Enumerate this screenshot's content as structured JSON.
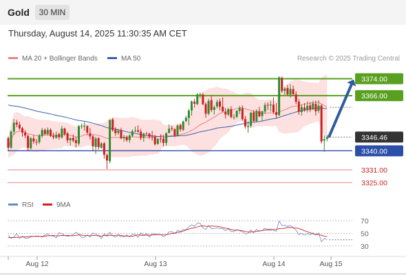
{
  "header": {
    "symbol": "Gold",
    "timeframe": "30 MIN"
  },
  "datetime": "Thursday, August 14, 2025 11:30:35 AM CET",
  "legend": {
    "ma20": "MA 20 + Bollinger Bands",
    "ma50": "MA 50",
    "credit": "Research © 2025 Trading Central"
  },
  "rsi_legend": {
    "rsi": "RSI",
    "ma": "9MA"
  },
  "colors": {
    "up": "#2e8b2e",
    "down": "#cc1f1f",
    "ma20": "#f08080",
    "ma50": "#3a5fa8",
    "band": "#fde0e0",
    "resistance": "#5aa020",
    "support": "#2b4fa8",
    "target_support": "#f0a0a0",
    "arrow": "#2e5c9e",
    "current": "#333333",
    "rsi": "#6688cc",
    "rsi_ma": "#cc1f1f"
  },
  "chart_data": [
    {
      "type": "candlestick",
      "title": "Gold",
      "timeframe": "30 MIN",
      "x_ticks": [
        "Aug 12",
        "Aug 13",
        "Aug 14",
        "Aug 15"
      ],
      "ylim": [
        3320,
        3380
      ],
      "levels": [
        {
          "label": "3374.00",
          "value": 3374,
          "kind": "resistance"
        },
        {
          "label": "3366.00",
          "value": 3366,
          "kind": "resistance"
        },
        {
          "label": "3346.46",
          "value": 3346.46,
          "kind": "current"
        },
        {
          "label": "3340.00",
          "value": 3340,
          "kind": "support"
        },
        {
          "label": "3331.00",
          "value": 3331,
          "kind": "target_support"
        },
        {
          "label": "3325.00",
          "value": 3325,
          "kind": "target_support"
        }
      ],
      "series": [
        {
          "name": "MA 20 + Bollinger Bands"
        },
        {
          "name": "MA 50"
        }
      ],
      "candles": [
        [
          3346.0,
          3346.7,
          3340.1,
          3341.4
        ],
        [
          3341.5,
          3349.6,
          3340.9,
          3349.0
        ],
        [
          3349.0,
          3355.0,
          3347.6,
          3353.2
        ],
        [
          3353.3,
          3354.6,
          3351.1,
          3352.4
        ],
        [
          3352.3,
          3353.6,
          3349.8,
          3350.6
        ],
        [
          3350.7,
          3351.3,
          3346.7,
          3348.6
        ],
        [
          3348.6,
          3349.7,
          3346.0,
          3347.2
        ],
        [
          3347.0,
          3347.8,
          3340.0,
          3341.4
        ],
        [
          3341.2,
          3346.6,
          3340.6,
          3345.9
        ],
        [
          3345.8,
          3347.3,
          3343.3,
          3344.4
        ],
        [
          3344.2,
          3345.6,
          3342.6,
          3343.9
        ],
        [
          3344.1,
          3347.9,
          3343.2,
          3347.3
        ],
        [
          3347.0,
          3350.8,
          3346.1,
          3349.8
        ],
        [
          3349.8,
          3350.6,
          3347.3,
          3347.9
        ],
        [
          3347.9,
          3351.0,
          3347.2,
          3349.9
        ],
        [
          3349.9,
          3350.6,
          3346.5,
          3347.0
        ],
        [
          3347.1,
          3348.6,
          3345.4,
          3346.4
        ],
        [
          3346.2,
          3349.1,
          3345.6,
          3347.5
        ],
        [
          3347.8,
          3348.6,
          3345.3,
          3346.4
        ],
        [
          3346.3,
          3351.8,
          3345.7,
          3350.5
        ],
        [
          3350.5,
          3350.9,
          3347.0,
          3347.9
        ],
        [
          3348.2,
          3348.9,
          3343.6,
          3344.9
        ],
        [
          3345.0,
          3346.5,
          3342.5,
          3345.9
        ],
        [
          3346.1,
          3347.7,
          3344.0,
          3344.8
        ],
        [
          3345.0,
          3346.6,
          3341.6,
          3343.6
        ],
        [
          3343.4,
          3352.2,
          3342.4,
          3351.6
        ],
        [
          3351.6,
          3352.9,
          3350.4,
          3351.7
        ],
        [
          3351.6,
          3353.6,
          3349.5,
          3351.8
        ],
        [
          3351.6,
          3352.1,
          3347.6,
          3348.6
        ],
        [
          3348.3,
          3350.7,
          3345.3,
          3346.8
        ],
        [
          3346.8,
          3347.7,
          3339.7,
          3342.1
        ],
        [
          3341.8,
          3346.6,
          3338.4,
          3345.8
        ],
        [
          3346.0,
          3346.4,
          3340.6,
          3341.8
        ],
        [
          3341.5,
          3344.1,
          3341.1,
          3343.5
        ],
        [
          3343.5,
          3344.2,
          3336.3,
          3338.1
        ],
        [
          3338.0,
          3338.6,
          3331.4,
          3335.4
        ],
        [
          3335.1,
          3354.8,
          3334.1,
          3354.5
        ],
        [
          3354.8,
          3355.6,
          3349.0,
          3349.7
        ],
        [
          3350.0,
          3351.1,
          3347.1,
          3348.3
        ],
        [
          3348.4,
          3350.4,
          3347.5,
          3349.5
        ],
        [
          3349.8,
          3350.9,
          3345.4,
          3345.9
        ],
        [
          3345.9,
          3347.6,
          3344.3,
          3346.6
        ],
        [
          3346.5,
          3347.2,
          3344.2,
          3345.0
        ],
        [
          3345.1,
          3347.9,
          3343.8,
          3347.2
        ],
        [
          3347.1,
          3350.1,
          3346.4,
          3349.3
        ],
        [
          3349.5,
          3351.4,
          3348.7,
          3349.5
        ],
        [
          3349.7,
          3352.0,
          3348.5,
          3349.0
        ],
        [
          3349.0,
          3350.3,
          3345.0,
          3346.2
        ],
        [
          3346.3,
          3348.5,
          3344.3,
          3348.1
        ],
        [
          3348.1,
          3348.9,
          3347.5,
          3347.9
        ],
        [
          3348.1,
          3348.4,
          3345.6,
          3346.7
        ],
        [
          3346.7,
          3349.4,
          3344.7,
          3346.5
        ],
        [
          3346.6,
          3347.5,
          3342.5,
          3343.1
        ],
        [
          3343.2,
          3345.8,
          3342.9,
          3345.7
        ],
        [
          3345.8,
          3347.8,
          3343.8,
          3345.6
        ],
        [
          3345.7,
          3347.1,
          3342.0,
          3343.7
        ],
        [
          3343.7,
          3348.8,
          3342.4,
          3348.3
        ],
        [
          3348.4,
          3352.5,
          3348.2,
          3350.4
        ],
        [
          3350.7,
          3351.8,
          3349.3,
          3350.3
        ],
        [
          3350.2,
          3350.7,
          3346.5,
          3347.2
        ],
        [
          3347.3,
          3352.6,
          3346.7,
          3351.9
        ],
        [
          3352.1,
          3352.9,
          3349.0,
          3350.1
        ],
        [
          3349.9,
          3354.3,
          3349.3,
          3353.8
        ],
        [
          3354.0,
          3356.5,
          3353.6,
          3355.6
        ],
        [
          3355.5,
          3359.8,
          3352.0,
          3359.0
        ],
        [
          3359.0,
          3363.7,
          3356.6,
          3363.3
        ],
        [
          3363.2,
          3364.5,
          3360.4,
          3362.2
        ],
        [
          3362.0,
          3367.2,
          3361.6,
          3366.6
        ],
        [
          3366.6,
          3367.5,
          3364.9,
          3366.6
        ],
        [
          3366.5,
          3367.2,
          3361.5,
          3362.0
        ],
        [
          3362.0,
          3362.8,
          3355.6,
          3357.5
        ],
        [
          3357.5,
          3364.5,
          3356.7,
          3363.5
        ],
        [
          3363.9,
          3366.1,
          3358.3,
          3359.2
        ],
        [
          3359.3,
          3361.4,
          3357.1,
          3360.6
        ],
        [
          3360.9,
          3364.1,
          3360.0,
          3363.0
        ],
        [
          3363.3,
          3364.6,
          3359.1,
          3360.8
        ],
        [
          3360.8,
          3365.2,
          3358.2,
          3358.6
        ],
        [
          3358.3,
          3360.2,
          3355.2,
          3357.1
        ],
        [
          3357.1,
          3360.3,
          3356.4,
          3359.6
        ],
        [
          3359.6,
          3361.0,
          3355.3,
          3355.9
        ],
        [
          3355.8,
          3357.3,
          3354.7,
          3355.9
        ],
        [
          3356.0,
          3359.2,
          3355.3,
          3358.9
        ],
        [
          3358.8,
          3361.2,
          3357.4,
          3360.2
        ],
        [
          3360.0,
          3361.4,
          3354.2,
          3354.9
        ],
        [
          3355.0,
          3356.4,
          3350.4,
          3351.5
        ],
        [
          3351.2,
          3353.9,
          3348.5,
          3351.6
        ],
        [
          3351.8,
          3358.4,
          3350.8,
          3358.0
        ],
        [
          3358.1,
          3359.2,
          3353.7,
          3354.0
        ],
        [
          3354.0,
          3359.6,
          3353.7,
          3358.9
        ],
        [
          3358.7,
          3360.8,
          3355.8,
          3356.3
        ],
        [
          3356.4,
          3359.0,
          3354.0,
          3358.6
        ],
        [
          3358.5,
          3362.7,
          3357.4,
          3361.6
        ],
        [
          3361.7,
          3362.9,
          3359.2,
          3361.6
        ],
        [
          3361.4,
          3363.5,
          3358.6,
          3361.8
        ],
        [
          3361.8,
          3365.2,
          3357.5,
          3358.2
        ],
        [
          3358.2,
          3362.5,
          3355.4,
          3356.9
        ],
        [
          3356.8,
          3375.2,
          3356.4,
          3374.6
        ],
        [
          3374.4,
          3375.1,
          3367.4,
          3368.2
        ],
        [
          3368.2,
          3370.0,
          3366.4,
          3369.4
        ],
        [
          3369.6,
          3371.0,
          3366.1,
          3366.6
        ],
        [
          3366.5,
          3371.5,
          3365.1,
          3369.2
        ],
        [
          3369.1,
          3370.8,
          3366.0,
          3366.7
        ],
        [
          3366.6,
          3368.1,
          3361.9,
          3363.1
        ],
        [
          3363.2,
          3364.4,
          3357.0,
          3358.4
        ],
        [
          3358.3,
          3361.8,
          3356.6,
          3360.6
        ],
        [
          3360.4,
          3362.5,
          3358.4,
          3359.3
        ],
        [
          3359.4,
          3363.2,
          3358.1,
          3361.2
        ],
        [
          3361.4,
          3363.0,
          3358.3,
          3359.4
        ],
        [
          3359.6,
          3363.6,
          3359.2,
          3362.3
        ],
        [
          3362.1,
          3363.7,
          3356.6,
          3358.6
        ],
        [
          3358.9,
          3363.9,
          3357.8,
          3361.3
        ],
        [
          3361.3,
          3362.0,
          3343.4,
          3344.4
        ],
        [
          3344.8,
          3347.2,
          3339.5,
          3345.5
        ],
        [
          3345.6,
          3347.4,
          3344.5,
          3346.46
        ]
      ]
    },
    {
      "type": "line",
      "title": "RSI",
      "ylim": [
        20,
        80
      ],
      "y_ticks": [
        "70",
        "50",
        "30"
      ],
      "series": [
        {
          "name": "RSI",
          "values": [
            47.5,
            42.2,
            44.3,
            49.4,
            42.0,
            45.6,
            42.0,
            42.6,
            44.5,
            45.1,
            45.9,
            45.6,
            44.2,
            47.6,
            48.7,
            46.2,
            45.8,
            42.8,
            51.1,
            49.5,
            46.7,
            45.4,
            46.2,
            48.0,
            51.8,
            48.7,
            43.8,
            43.9,
            47.7,
            44.7,
            50.8,
            48.8,
            46.9,
            41.9,
            49.0,
            46.7,
            52.1,
            46.6,
            43.8,
            46.8,
            45.1,
            44.9,
            47.6,
            44.5,
            48.5,
            48.4,
            43.5,
            51.0,
            47.1,
            50.0,
            44.2,
            49.5,
            49.1,
            47.6,
            48.3,
            44.6,
            47.7,
            52.4,
            53.1,
            49.3,
            54.8,
            53.1,
            56.3,
            55.6,
            60.7,
            63.5,
            61.4,
            66.1,
            66.3,
            58.6,
            56.2,
            62.7,
            57.2,
            57.7,
            58.9,
            57.9,
            57.7,
            54.3,
            57.2,
            53.1,
            52.8,
            56.0,
            54.3,
            52.6,
            49.3,
            49.6,
            55.6,
            51.2,
            56.3,
            53.4,
            54.6,
            58.3,
            56.5,
            57.2,
            54.9,
            53.4,
            69.7,
            62.2,
            63.0,
            61.0,
            62.8,
            59.4,
            55.1,
            48.1,
            50.1,
            47.0,
            49.9,
            47.5,
            51.0,
            47.3,
            50.9,
            36.8,
            41.8,
            39.9
          ]
        },
        {
          "name": "9MA",
          "values": [
            43.5,
            43.3,
            43.5,
            43.8,
            43.9,
            44.3,
            44.5,
            44.8,
            45.3,
            45.3,
            45.4,
            45.2,
            45.1,
            45.6,
            46.3,
            46.5,
            46.8,
            46.1,
            46.3,
            46.7,
            46.5,
            46.8,
            46.4,
            46.3,
            47.0,
            47.6,
            47.5,
            46.5,
            46.6,
            46.1,
            46.8,
            46.5,
            46.2,
            45.8,
            46.9,
            46.1,
            47.4,
            46.3,
            46.8,
            47.6,
            46.6,
            45.9,
            46.0,
            45.5,
            45.5,
            46.6,
            47.6,
            47.3,
            47.0,
            47.4,
            47.3,
            47.5,
            47.7,
            48.3,
            47.9,
            47.6,
            47.7,
            48.8,
            50.0,
            50.4,
            51.8,
            52.3,
            53.6,
            55.4,
            56.9,
            58.2,
            58.8,
            60.4,
            61.6,
            62.0,
            61.2,
            61.2,
            61.8,
            61.4,
            61.4,
            60.6,
            59.3,
            58.3,
            57.7,
            56.1,
            55.1,
            55.2,
            55.0,
            54.2,
            52.9,
            52.4,
            52.5,
            52.4,
            53.2,
            54.0,
            54.6,
            55.5,
            55.5,
            55.5,
            56.2,
            56.3,
            57.5,
            57.7,
            58.2,
            59.3,
            59.5,
            58.9,
            58.8,
            57.8,
            56.2,
            54.1,
            52.7,
            51.0,
            49.4,
            48.6,
            47.9,
            47.1,
            45.8,
            44.6
          ]
        }
      ]
    }
  ]
}
